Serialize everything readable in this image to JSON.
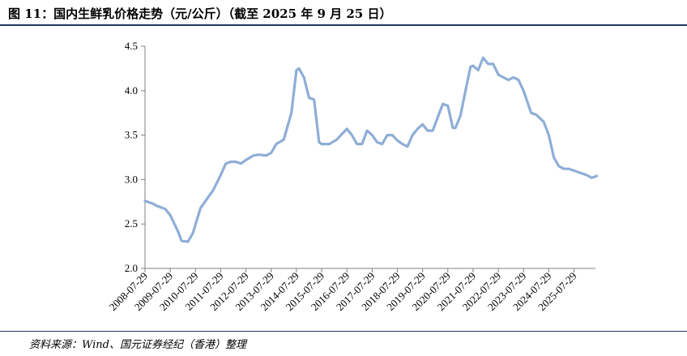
{
  "title": "图 11：国内生鲜乳价格走势（元/公斤）（截至 2025 年 9 月 25 日）",
  "source": "资料来源：Wind、国元证券经纪（香港）整理",
  "chart_data": {
    "type": "line",
    "title": "",
    "xlabel": "",
    "ylabel": "",
    "ylim": [
      2.0,
      4.5
    ],
    "yticks": [
      "2.0",
      "2.5",
      "3.0",
      "3.5",
      "4.0",
      "4.5"
    ],
    "xticks": [
      "2008-07-29",
      "2009-07-29",
      "2010-07-29",
      "2011-07-29",
      "2012-07-29",
      "2013-07-29",
      "2014-07-29",
      "2015-07-29",
      "2016-07-29",
      "2017-07-29",
      "2018-07-29",
      "2019-07-29",
      "2020-07-29",
      "2021-07-29",
      "2022-07-29",
      "2023-07-29",
      "2024-07-29",
      "2025-07-29"
    ],
    "grid": false,
    "line_color": "#8eaed6",
    "series": [
      {
        "x": [
          2008.0,
          2008.3,
          2008.5,
          2008.8,
          2009.0,
          2009.3,
          2009.45,
          2009.7,
          2009.9,
          2010.2,
          2010.5,
          2010.7,
          2011.0,
          2011.2,
          2011.4,
          2011.6,
          2011.8,
          2012.0,
          2012.3,
          2012.5,
          2012.8,
          2013.0,
          2013.2,
          2013.5,
          2013.8,
          2014.0,
          2014.1,
          2014.3,
          2014.5,
          2014.7,
          2014.9,
          2015.0,
          2015.2,
          2015.3,
          2015.6,
          2016.0,
          2016.2,
          2016.4,
          2016.6,
          2016.8,
          2017.0,
          2017.2,
          2017.4,
          2017.6,
          2017.8,
          2018.0,
          2018.2,
          2018.4,
          2018.6,
          2018.8,
          2019.0,
          2019.2,
          2019.4,
          2019.6,
          2019.8,
          2020.0,
          2020.2,
          2020.3,
          2020.5,
          2020.7,
          2020.9,
          2021.0,
          2021.2,
          2021.4,
          2021.6,
          2021.8,
          2022.0,
          2022.2,
          2022.4,
          2022.6,
          2022.8,
          2023.0,
          2023.3,
          2023.5,
          2023.8,
          2024.0,
          2024.2,
          2024.4,
          2024.6,
          2024.8,
          2025.0,
          2025.3,
          2025.5,
          2025.7,
          2025.9
        ],
        "values": [
          2.76,
          2.73,
          2.7,
          2.67,
          2.6,
          2.42,
          2.31,
          2.3,
          2.4,
          2.68,
          2.8,
          2.88,
          3.05,
          3.18,
          3.2,
          3.2,
          3.18,
          3.22,
          3.27,
          3.28,
          3.27,
          3.3,
          3.4,
          3.45,
          3.75,
          4.23,
          4.25,
          4.15,
          3.92,
          3.9,
          3.42,
          3.4,
          3.4,
          3.4,
          3.45,
          3.57,
          3.5,
          3.4,
          3.4,
          3.55,
          3.5,
          3.42,
          3.4,
          3.5,
          3.5,
          3.44,
          3.4,
          3.37,
          3.5,
          3.57,
          3.62,
          3.55,
          3.55,
          3.7,
          3.85,
          3.83,
          3.58,
          3.58,
          3.72,
          4.0,
          4.27,
          4.28,
          4.23,
          4.37,
          4.3,
          4.3,
          4.18,
          4.15,
          4.12,
          4.15,
          4.12,
          4.0,
          3.75,
          3.73,
          3.65,
          3.5,
          3.25,
          3.15,
          3.12,
          3.12,
          3.1,
          3.07,
          3.05,
          3.02,
          3.04
        ]
      }
    ]
  }
}
